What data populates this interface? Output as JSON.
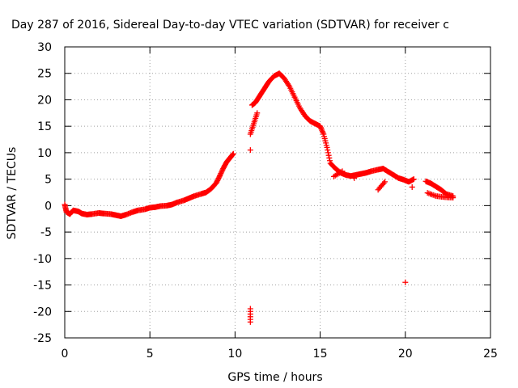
{
  "chart_data": {
    "type": "scatter",
    "title": "Day 287 of 2016, Sidereal Day-to-day VTEC variation (SDTVAR) for receiver c",
    "xlabel": "GPS time / hours",
    "ylabel": "SDTVAR / TECUs",
    "xlim": [
      0,
      25
    ],
    "ylim": [
      -25,
      30
    ],
    "x_ticks": [
      0,
      5,
      10,
      15,
      20,
      25
    ],
    "x_tick_labels": [
      "0",
      "5",
      "10",
      "15",
      "20",
      "25"
    ],
    "y_ticks": [
      -25,
      -20,
      -15,
      -10,
      -5,
      0,
      5,
      10,
      15,
      20,
      25,
      30
    ],
    "y_tick_labels": [
      "-25",
      "-20",
      "-15",
      "-10",
      "-5",
      "0",
      "5",
      "10",
      "15",
      "20",
      "25",
      "30"
    ],
    "grid": true,
    "marker": "+",
    "color": "#ff0000",
    "series": [
      {
        "name": "SDTVAR",
        "points": [
          [
            0.0,
            0.2
          ],
          [
            0.1,
            -1.2
          ],
          [
            0.3,
            -1.6
          ],
          [
            0.5,
            -0.9
          ],
          [
            0.8,
            -1.1
          ],
          [
            1.0,
            -1.5
          ],
          [
            1.3,
            -1.7
          ],
          [
            1.6,
            -1.6
          ],
          [
            2.0,
            -1.4
          ],
          [
            2.3,
            -1.5
          ],
          [
            2.7,
            -1.6
          ],
          [
            3.0,
            -1.8
          ],
          [
            3.3,
            -2.0
          ],
          [
            3.6,
            -1.7
          ],
          [
            4.0,
            -1.2
          ],
          [
            4.3,
            -0.9
          ],
          [
            4.7,
            -0.7
          ],
          [
            5.0,
            -0.4
          ],
          [
            5.3,
            -0.3
          ],
          [
            5.6,
            -0.1
          ],
          [
            6.0,
            0.0
          ],
          [
            6.3,
            0.2
          ],
          [
            6.6,
            0.6
          ],
          [
            7.0,
            1.0
          ],
          [
            7.3,
            1.4
          ],
          [
            7.6,
            1.8
          ],
          [
            8.0,
            2.2
          ],
          [
            8.3,
            2.5
          ],
          [
            8.6,
            3.2
          ],
          [
            8.9,
            4.3
          ],
          [
            9.1,
            5.6
          ],
          [
            9.3,
            7.0
          ],
          [
            9.5,
            8.2
          ],
          [
            9.7,
            9.0
          ],
          [
            9.9,
            9.8
          ],
          [
            10.9,
            10.5
          ],
          [
            11.0,
            19.0
          ],
          [
            11.2,
            19.5
          ],
          [
            11.4,
            20.5
          ],
          [
            11.6,
            21.5
          ],
          [
            11.8,
            22.5
          ],
          [
            12.0,
            23.5
          ],
          [
            12.3,
            24.5
          ],
          [
            12.6,
            25.0
          ],
          [
            12.9,
            24.0
          ],
          [
            13.2,
            22.5
          ],
          [
            13.5,
            20.5
          ],
          [
            13.8,
            18.5
          ],
          [
            14.1,
            17.0
          ],
          [
            14.4,
            16.0
          ],
          [
            14.7,
            15.5
          ],
          [
            15.0,
            15.0
          ],
          [
            15.2,
            13.5
          ],
          [
            15.4,
            11.0
          ],
          [
            15.6,
            8.0
          ],
          [
            15.9,
            7.0
          ],
          [
            16.2,
            6.2
          ],
          [
            16.5,
            5.8
          ],
          [
            16.8,
            5.6
          ],
          [
            17.1,
            5.8
          ],
          [
            17.4,
            6.0
          ],
          [
            17.7,
            6.2
          ],
          [
            18.0,
            6.5
          ],
          [
            18.4,
            6.8
          ],
          [
            18.7,
            7.0
          ],
          [
            19.0,
            6.4
          ],
          [
            19.3,
            5.8
          ],
          [
            19.6,
            5.2
          ],
          [
            19.9,
            4.9
          ],
          [
            20.2,
            4.5
          ],
          [
            20.5,
            5.0
          ],
          [
            21.2,
            4.6
          ],
          [
            21.5,
            4.2
          ],
          [
            21.8,
            3.6
          ],
          [
            22.1,
            3.0
          ],
          [
            22.4,
            2.2
          ],
          [
            22.8,
            1.8
          ],
          [
            21.3,
            2.4
          ],
          [
            21.8,
            1.8
          ],
          [
            22.3,
            1.6
          ],
          [
            22.8,
            1.5
          ],
          [
            10.9,
            13.5
          ],
          [
            11.1,
            15.5
          ],
          [
            11.3,
            17.5
          ],
          [
            15.8,
            5.5
          ],
          [
            16.3,
            6.5
          ],
          [
            17.0,
            5.2
          ],
          [
            18.4,
            3.0
          ],
          [
            18.8,
            4.5
          ],
          [
            20.4,
            3.5
          ],
          [
            10.9,
            -19.5
          ],
          [
            10.9,
            -20.0
          ],
          [
            10.9,
            -20.5
          ],
          [
            10.9,
            -21.0
          ],
          [
            10.9,
            -21.5
          ],
          [
            10.9,
            -22.0
          ],
          [
            20.0,
            -14.5
          ]
        ]
      }
    ]
  }
}
